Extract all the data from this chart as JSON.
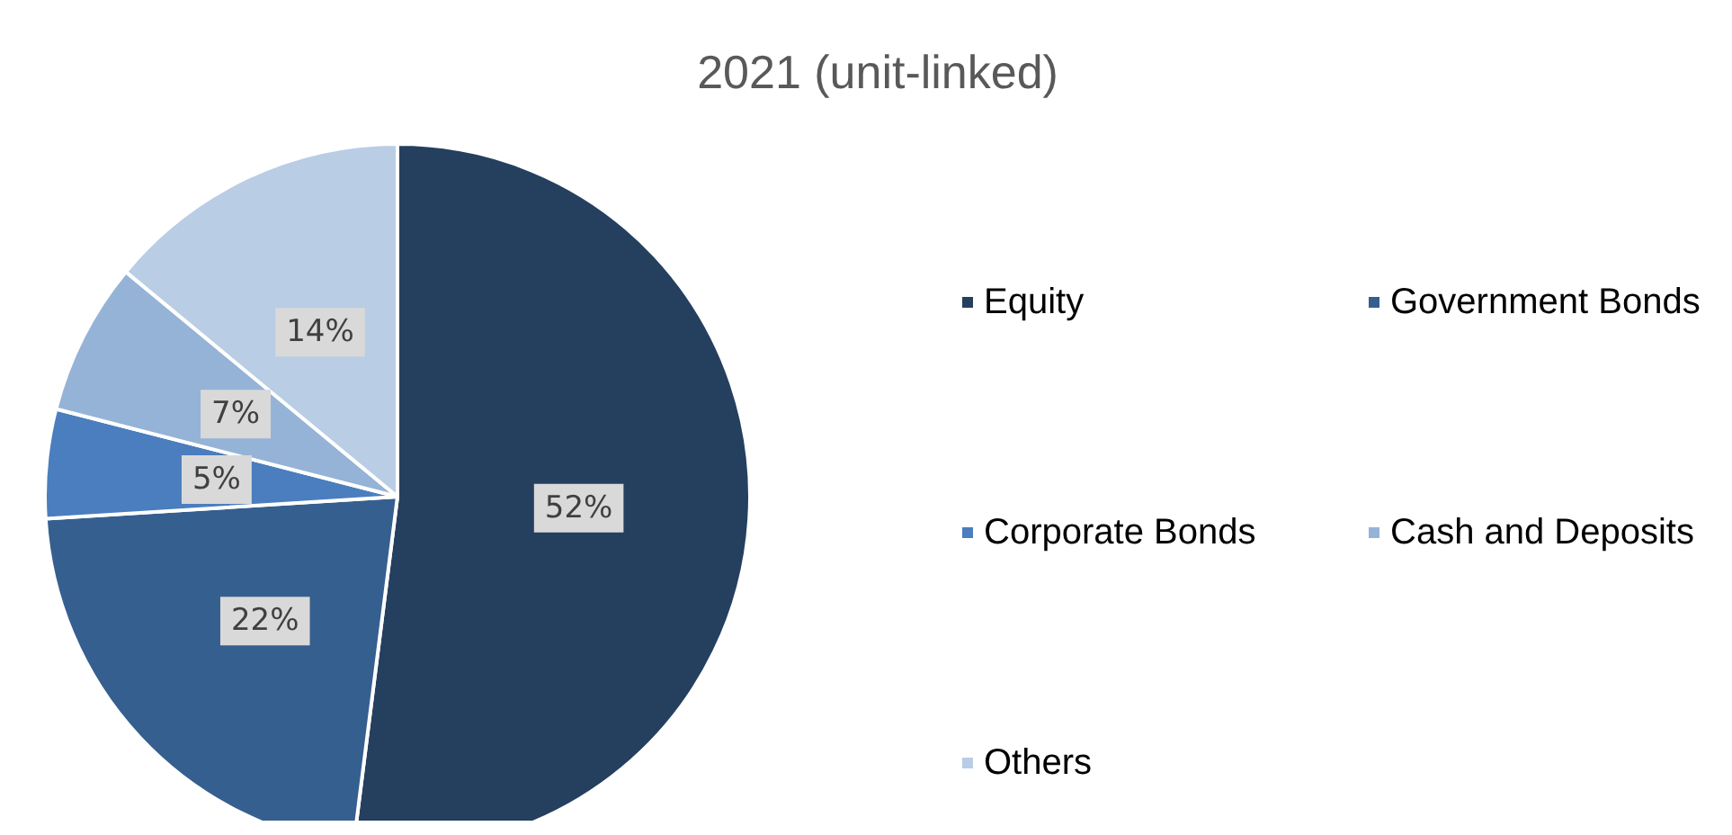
{
  "chart_data": {
    "type": "pie",
    "title": "2021 (unit-linked)",
    "categories": [
      "Equity",
      "Government Bonds",
      "Corporate Bonds",
      "Cash and Deposits",
      "Others"
    ],
    "values": [
      52,
      22,
      5,
      7,
      14
    ],
    "value_labels": [
      "52%",
      "22%",
      "5%",
      "7%",
      "14%"
    ],
    "colors": [
      "#253f5f",
      "#355f8f",
      "#4a7ebe",
      "#95b3d7",
      "#b9cde5"
    ],
    "legend": "right"
  }
}
